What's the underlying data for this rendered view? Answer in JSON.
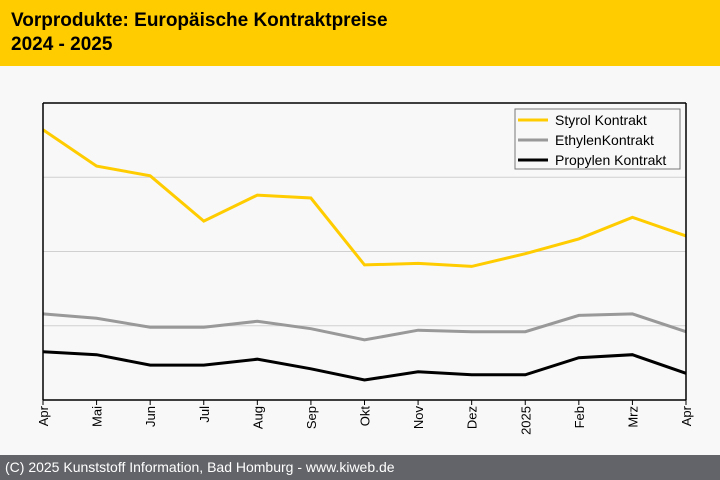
{
  "header": {
    "title_line1": "Vorprodukte: Europäische Kontraktpreise",
    "title_line2": "2024 - 2025"
  },
  "footer": {
    "text": "(C) 2025 Kunststoff Information, Bad Homburg - www.kiweb.de"
  },
  "colors": {
    "header_bg": "#ffcc00",
    "footer_bg": "#636469",
    "styrol": "#ffcc00",
    "ethylen": "#999999",
    "propylen": "#000000",
    "grid": "#d0d0d0"
  },
  "chart_data": {
    "type": "line",
    "title": "Vorprodukte: Europäische Kontraktpreise 2024 - 2025",
    "xlabel": "",
    "ylabel": "",
    "y_units": "relative (no y-axis labels shown; gridlines at 1, 2, 3)",
    "ylim": [
      0,
      4
    ],
    "grid": true,
    "legend_position": "top-right",
    "categories": [
      "Apr",
      "Mai",
      "Jun",
      "Jul",
      "Aug",
      "Sep",
      "Okt",
      "Nov",
      "Dez",
      "2025",
      "Feb",
      "Mrz",
      "Apr"
    ],
    "series": [
      {
        "name": "Styrol Kontrakt",
        "color": "#ffcc00",
        "values": [
          3.64,
          3.15,
          3.02,
          2.41,
          2.76,
          2.72,
          1.82,
          1.84,
          1.8,
          1.97,
          2.17,
          2.46,
          2.21
        ]
      },
      {
        "name": "EthylenKontrakt",
        "color": "#999999",
        "values": [
          1.16,
          1.1,
          0.98,
          0.98,
          1.06,
          0.96,
          0.81,
          0.94,
          0.92,
          0.92,
          1.14,
          1.16,
          0.92
        ]
      },
      {
        "name": "Propylen Kontrakt",
        "color": "#000000",
        "values": [
          0.65,
          0.61,
          0.47,
          0.47,
          0.55,
          0.42,
          0.27,
          0.38,
          0.34,
          0.34,
          0.57,
          0.61,
          0.36
        ]
      }
    ]
  }
}
